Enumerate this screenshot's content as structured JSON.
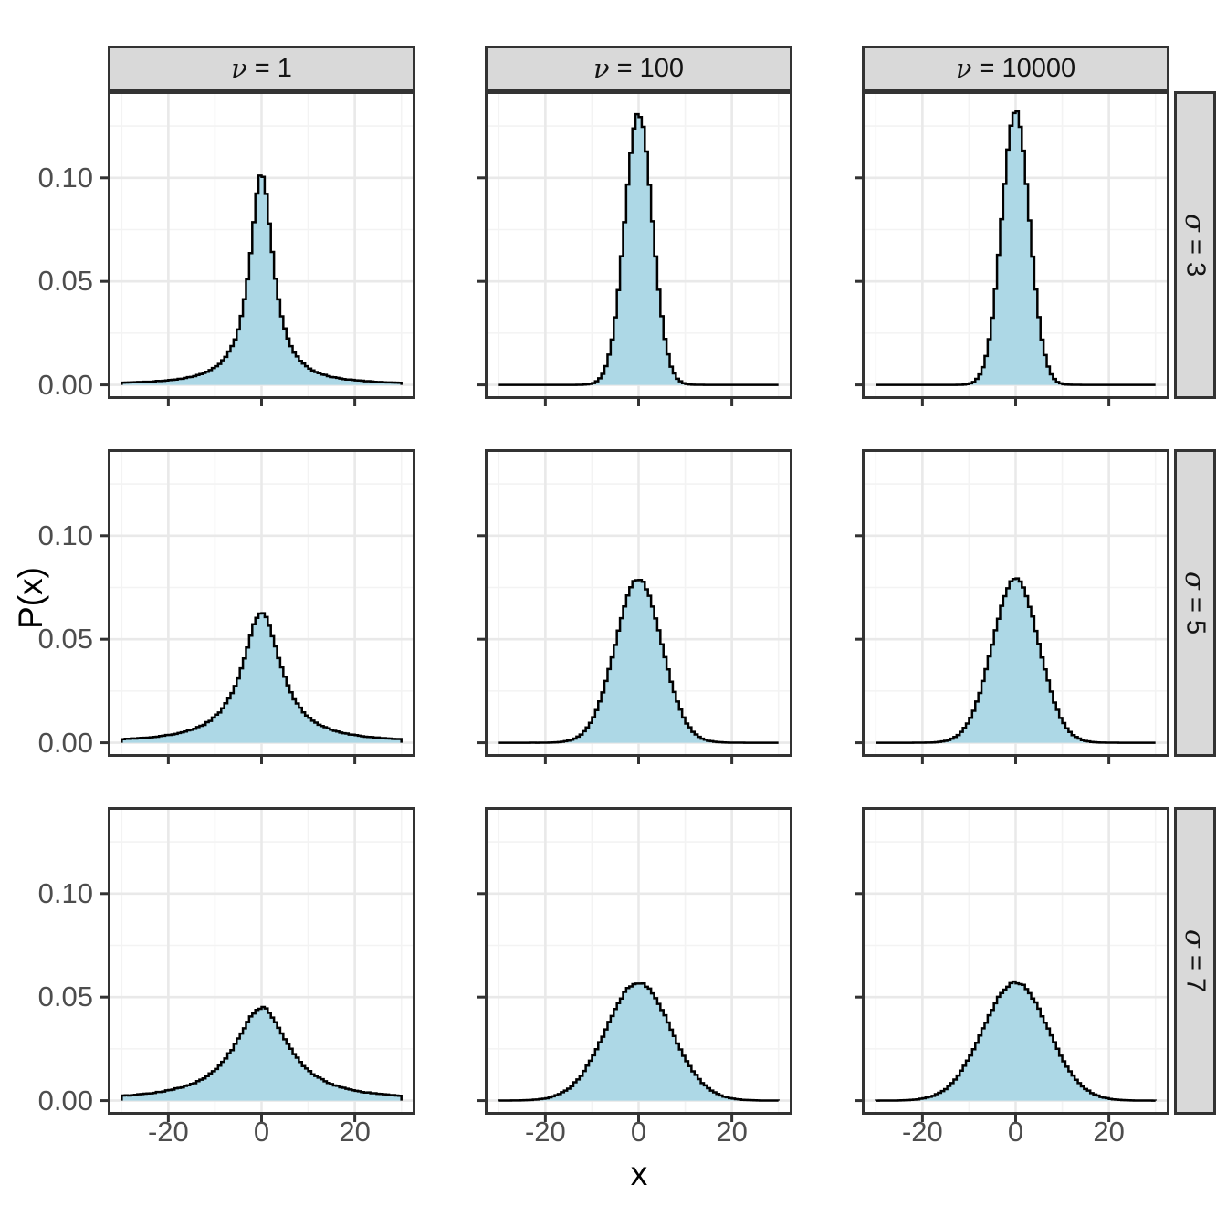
{
  "chart_data": {
    "type": "area",
    "description": "3x3 facet grid of Student-t probability density histograms for combinations of degrees of freedom (nu) and scale (sigma)",
    "facet_grid": {
      "col_symbol": "ν",
      "row_symbol": "σ",
      "separator": " = ",
      "col_values": [
        "1",
        "100",
        "10000"
      ],
      "row_values": [
        "3",
        "5",
        "7"
      ],
      "col_labels": [
        "ν = 1",
        "ν = 100",
        "ν = 10000"
      ],
      "row_labels": [
        "σ = 3",
        "σ = 5",
        "σ = 7"
      ]
    },
    "x": {
      "label": "x",
      "ticks": [
        -20,
        0,
        20
      ],
      "tick_labels": [
        "-20",
        "0",
        "20"
      ],
      "minor_ticks": [
        -30,
        -10,
        10,
        30
      ],
      "data_range": [
        -30,
        30
      ],
      "domain": [
        -33,
        33
      ]
    },
    "y": {
      "label": "P(x)",
      "ticks": [
        0,
        0.05,
        0.1
      ],
      "tick_labels": [
        "0.00",
        "0.05",
        "0.10"
      ],
      "minor_ticks": [
        0.025,
        0.075,
        0.125
      ],
      "domain": [
        -0.0068,
        0.1418
      ]
    },
    "panels": [
      {
        "row": 0,
        "col": 0,
        "nu": 1,
        "sigma": 3,
        "peak_density": 0.102
      },
      {
        "row": 0,
        "col": 1,
        "nu": 100,
        "sigma": 3,
        "peak_density": 0.131
      },
      {
        "row": 0,
        "col": 2,
        "nu": 10000,
        "sigma": 3,
        "peak_density": 0.132
      },
      {
        "row": 1,
        "col": 0,
        "nu": 1,
        "sigma": 5,
        "peak_density": 0.063
      },
      {
        "row": 1,
        "col": 1,
        "nu": 100,
        "sigma": 5,
        "peak_density": 0.079
      },
      {
        "row": 1,
        "col": 2,
        "nu": 10000,
        "sigma": 5,
        "peak_density": 0.079
      },
      {
        "row": 2,
        "col": 0,
        "nu": 1,
        "sigma": 7,
        "peak_density": 0.045
      },
      {
        "row": 2,
        "col": 1,
        "nu": 100,
        "sigma": 7,
        "peak_density": 0.057
      },
      {
        "row": 2,
        "col": 2,
        "nu": 10000,
        "sigma": 7,
        "peak_density": 0.057
      }
    ],
    "curve_formula": "P(x) = peak_density * (1 + (x/sigma)^2 / nu)^(-(nu+1)/2)",
    "grid": "on",
    "legend": "none",
    "style": {
      "fill": "#ADD8E6",
      "line": "#000000",
      "strip_fill": "#D9D9D9",
      "panel_border": "#333333",
      "grid_major": "#E9E9E9",
      "grid_minor": "#F3F3F3",
      "tick_color": "#333333",
      "tick_label_color": "#4D4D4D",
      "background": "#FFFFFF"
    }
  }
}
